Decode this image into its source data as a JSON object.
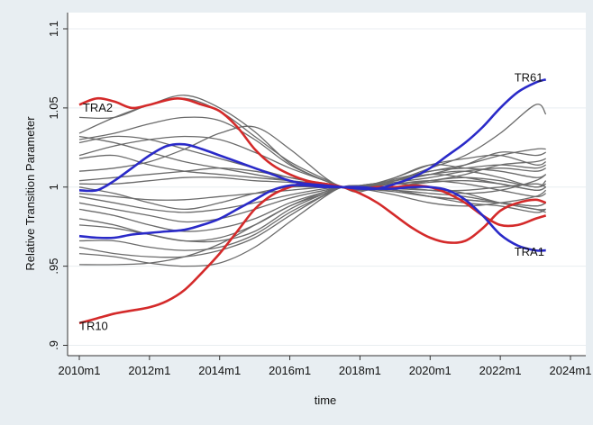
{
  "chart_data": {
    "type": "line",
    "title": "",
    "xlabel": "time",
    "ylabel": "Relative Transition Parameter",
    "xlim": [
      2010.0,
      2024.0
    ],
    "ylim": [
      0.89,
      1.1
    ],
    "x_ticks": [
      {
        "value": 2010,
        "label": "2010m1"
      },
      {
        "value": 2012,
        "label": "2012m1"
      },
      {
        "value": 2014,
        "label": "2014m1"
      },
      {
        "value": 2016,
        "label": "2016m1"
      },
      {
        "value": 2018,
        "label": "2018m1"
      },
      {
        "value": 2020,
        "label": "2020m1"
      },
      {
        "value": 2022,
        "label": "2022m1"
      },
      {
        "value": 2024,
        "label": "2024m1"
      }
    ],
    "y_ticks": [
      {
        "value": 0.9,
        "label": ".9"
      },
      {
        "value": 0.95,
        "label": ".95"
      },
      {
        "value": 1.0,
        "label": "1"
      },
      {
        "value": 1.05,
        "label": "1.05"
      },
      {
        "value": 1.1,
        "label": "1.1"
      }
    ],
    "grid": true,
    "legend": "none",
    "colors": {
      "background": "#e8eef2",
      "plot_bg": "#ffffff",
      "other": "#6b6b6b",
      "red": "#d42a2a",
      "blue": "#2a2ac8",
      "grid": "#e8edf0"
    },
    "gray_series": [
      {
        "x": [
          2010,
          2011,
          2012,
          2013,
          2014,
          2015,
          2016,
          2017,
          2017.5,
          2018,
          2019,
          2020,
          2021,
          2022,
          2023,
          2023.3
        ],
        "y": [
          1.02,
          1.026,
          1.03,
          1.032,
          1.03,
          1.022,
          1.012,
          1.004,
          1.0,
          0.998,
          1.004,
          1.012,
          1.02,
          1.034,
          1.052,
          1.046
        ]
      },
      {
        "x": [
          2010,
          2011,
          2012,
          2013,
          2014,
          2015,
          2016,
          2017,
          2017.5,
          2018,
          2019,
          2020,
          2021,
          2022,
          2023,
          2023.3
        ],
        "y": [
          1.034,
          1.044,
          1.052,
          1.058,
          1.05,
          1.035,
          1.015,
          1.004,
          1.0,
          0.998,
          1.005,
          1.01,
          1.014,
          1.02,
          1.024,
          1.024
        ]
      },
      {
        "x": [
          2010,
          2011,
          2012,
          2013,
          2014,
          2015,
          2016,
          2017,
          2017.5,
          2018,
          2019,
          2020,
          2021,
          2022,
          2023,
          2023.3
        ],
        "y": [
          1.044,
          1.044,
          1.052,
          1.056,
          1.048,
          1.032,
          1.016,
          1.005,
          1.0,
          0.997,
          1.004,
          1.01,
          1.012,
          1.014,
          1.012,
          1.014
        ]
      },
      {
        "x": [
          2010,
          2011,
          2012,
          2013,
          2014,
          2015,
          2016,
          2017,
          2017.5,
          2018,
          2019,
          2020,
          2021,
          2022,
          2023,
          2023.3
        ],
        "y": [
          1.03,
          1.034,
          1.04,
          1.044,
          1.042,
          1.03,
          1.014,
          1.004,
          1.0,
          0.999,
          1.006,
          1.014,
          1.012,
          1.01,
          1.006,
          1.008
        ]
      },
      {
        "x": [
          2010,
          2011,
          2012,
          2013,
          2014,
          2015,
          2016,
          2017,
          2017.5,
          2018,
          2019,
          2020,
          2021,
          2022,
          2023,
          2023.3
        ],
        "y": [
          1.028,
          1.032,
          1.03,
          1.024,
          1.018,
          1.012,
          1.006,
          1.002,
          1.0,
          0.998,
          1.0,
          1.004,
          1.006,
          1.004,
          1.0,
          1.002
        ]
      },
      {
        "x": [
          2010,
          2011,
          2012,
          2013,
          2014,
          2015,
          2016,
          2017,
          2017.5,
          2018,
          2019,
          2020,
          2021,
          2022,
          2023,
          2023.3
        ],
        "y": [
          1.032,
          1.028,
          1.022,
          1.016,
          1.012,
          1.008,
          1.004,
          1.001,
          1.0,
          1.0,
          1.002,
          1.004,
          1.002,
          0.998,
          0.994,
          0.996
        ]
      },
      {
        "x": [
          2010,
          2011,
          2012,
          2013,
          2014,
          2015,
          2016,
          2017,
          2017.5,
          2018,
          2019,
          2020,
          2021,
          2022,
          2023,
          2023.3
        ],
        "y": [
          1.018,
          1.02,
          1.014,
          1.01,
          1.008,
          1.006,
          1.004,
          1.002,
          1.0,
          0.999,
          0.998,
          0.996,
          0.994,
          0.99,
          0.986,
          0.986
        ]
      },
      {
        "x": [
          2010,
          2011,
          2012,
          2013,
          2014,
          2015,
          2016,
          2017,
          2017.5,
          2018,
          2019,
          2020,
          2021,
          2022,
          2023,
          2023.3
        ],
        "y": [
          1.004,
          1.006,
          1.008,
          1.01,
          1.012,
          1.01,
          1.006,
          1.002,
          1.0,
          0.999,
          0.997,
          0.994,
          0.992,
          0.99,
          0.988,
          0.99
        ]
      },
      {
        "x": [
          2010,
          2011,
          2012,
          2013,
          2014,
          2015,
          2016,
          2017,
          2017.5,
          2018,
          2019,
          2020,
          2021,
          2022,
          2023,
          2023.3
        ],
        "y": [
          1.002,
          1.002,
          1.004,
          1.006,
          1.006,
          1.004,
          1.003,
          1.001,
          1.0,
          1.0,
          1.003,
          1.006,
          1.01,
          1.012,
          1.01,
          1.012
        ]
      },
      {
        "x": [
          2010,
          2011,
          2012,
          2013,
          2014,
          2015,
          2016,
          2017,
          2017.5,
          2018,
          2019,
          2020,
          2021,
          2022,
          2023,
          2023.3
        ],
        "y": [
          0.996,
          0.994,
          0.992,
          0.992,
          0.994,
          0.996,
          0.998,
          1.0,
          1.0,
          1.0,
          1.006,
          1.014,
          1.018,
          1.02,
          1.014,
          1.016
        ]
      },
      {
        "x": [
          2010,
          2011,
          2012,
          2013,
          2014,
          2015,
          2016,
          2017,
          2017.5,
          2018,
          2019,
          2020,
          2021,
          2022,
          2023,
          2023.3
        ],
        "y": [
          0.994,
          0.99,
          0.986,
          0.984,
          0.986,
          0.99,
          0.995,
          0.999,
          1.0,
          1.0,
          1.004,
          1.008,
          1.01,
          1.006,
          1.0,
          1.004
        ]
      },
      {
        "x": [
          2010,
          2011,
          2012,
          2013,
          2014,
          2015,
          2016,
          2017,
          2017.5,
          2018,
          2019,
          2020,
          2021,
          2022,
          2023,
          2023.3
        ],
        "y": [
          0.99,
          0.986,
          0.982,
          0.978,
          0.98,
          0.986,
          0.993,
          0.998,
          1.0,
          0.999,
          0.995,
          0.99,
          0.988,
          0.99,
          0.994,
          0.998
        ]
      },
      {
        "x": [
          2010,
          2011,
          2012,
          2013,
          2014,
          2015,
          2016,
          2017,
          2017.5,
          2018,
          2019,
          2020,
          2021,
          2022,
          2023,
          2023.3
        ],
        "y": [
          0.986,
          0.982,
          0.976,
          0.972,
          0.974,
          0.98,
          0.99,
          0.997,
          1.0,
          1.0,
          0.998,
          0.994,
          0.99,
          0.988,
          0.984,
          0.986
        ]
      },
      {
        "x": [
          2010,
          2011,
          2012,
          2013,
          2014,
          2015,
          2016,
          2017,
          2017.5,
          2018,
          2019,
          2020,
          2021,
          2022,
          2023,
          2023.3
        ],
        "y": [
          0.98,
          0.976,
          0.97,
          0.966,
          0.968,
          0.976,
          0.988,
          0.997,
          1.0,
          1.001,
          1.004,
          1.008,
          1.014,
          1.022,
          1.02,
          1.022
        ]
      },
      {
        "x": [
          2010,
          2011,
          2012,
          2013,
          2014,
          2015,
          2016,
          2017,
          2017.5,
          2018,
          2019,
          2020,
          2021,
          2022,
          2023,
          2023.3
        ],
        "y": [
          0.976,
          0.974,
          0.97,
          0.966,
          0.966,
          0.972,
          0.986,
          0.996,
          1.0,
          1.0,
          1.002,
          1.0,
          0.996,
          0.99,
          0.986,
          0.984
        ]
      },
      {
        "x": [
          2010,
          2011,
          2012,
          2013,
          2014,
          2015,
          2016,
          2017,
          2017.5,
          2018,
          2019,
          2020,
          2021,
          2022,
          2023,
          2023.3
        ],
        "y": [
          0.966,
          0.966,
          0.962,
          0.96,
          0.962,
          0.97,
          0.984,
          0.995,
          1.0,
          1.001,
          1.004,
          1.008,
          1.006,
          1.002,
          0.998,
          1.0
        ]
      },
      {
        "x": [
          2010,
          2011,
          2012,
          2013,
          2014,
          2015,
          2016,
          2017,
          2017.5,
          2018,
          2019,
          2020,
          2021,
          2022,
          2023,
          2023.3
        ],
        "y": [
          0.962,
          0.958,
          0.956,
          0.956,
          0.96,
          0.968,
          0.982,
          0.995,
          1.0,
          1.0,
          0.998,
          0.994,
          0.992,
          0.99,
          0.988,
          0.99
        ]
      },
      {
        "x": [
          2010,
          2011,
          2012,
          2013,
          2014,
          2015,
          2016,
          2017,
          2017.5,
          2018,
          2019,
          2020,
          2021,
          2022,
          2023,
          2023.3
        ],
        "y": [
          0.958,
          0.956,
          0.952,
          0.95,
          0.952,
          0.962,
          0.978,
          0.994,
          1.0,
          1.001,
          1.0,
          0.998,
          0.996,
          0.998,
          1.004,
          1.008
        ]
      },
      {
        "x": [
          2010,
          2011,
          2012,
          2013,
          2014,
          2015,
          2016,
          2017,
          2017.5,
          2018,
          2019,
          2020,
          2021,
          2022,
          2023,
          2023.3
        ],
        "y": [
          0.951,
          0.951,
          0.952,
          0.956,
          0.964,
          0.976,
          0.988,
          0.996,
          1.0,
          1.0,
          1.002,
          1.004,
          1.008,
          1.014,
          1.016,
          1.018
        ]
      },
      {
        "x": [
          2010,
          2011,
          2012,
          2013,
          2014,
          2015,
          2016,
          2017,
          2017.5,
          2018,
          2019,
          2020,
          2021,
          2022,
          2023,
          2023.3
        ],
        "y": [
          1.01,
          1.012,
          1.016,
          1.024,
          1.034,
          1.038,
          1.024,
          1.006,
          1.0,
          0.998,
          1.0,
          1.003,
          1.004,
          1.002,
          0.998,
          1.0
        ]
      },
      {
        "x": [
          2010,
          2011,
          2012,
          2013,
          2014,
          2015,
          2016,
          2017,
          2017.5,
          2018,
          2019,
          2020,
          2021,
          2022,
          2023,
          2023.3
        ],
        "y": [
          1.0,
          0.996,
          0.99,
          0.986,
          0.99,
          0.996,
          1.0,
          1.0,
          1.0,
          1.0,
          0.999,
          0.998,
          0.998,
          1.0,
          1.002,
          1.0
        ]
      }
    ],
    "highlight_series": [
      {
        "name": "TRA2",
        "color": "#d42a2a",
        "x": [
          2010,
          2010.5,
          2011,
          2011.5,
          2012,
          2012.8,
          2013.5,
          2014,
          2014.5,
          2015,
          2015.5,
          2016,
          2016.5,
          2017,
          2017.5,
          2018,
          2018.5,
          2019,
          2019.5,
          2020,
          2020.5,
          2021,
          2021.5,
          2022,
          2022.5,
          2023,
          2023.3
        ],
        "y": [
          1.052,
          1.056,
          1.054,
          1.05,
          1.052,
          1.056,
          1.052,
          1.048,
          1.038,
          1.024,
          1.014,
          1.008,
          1.004,
          1.002,
          1.0,
          0.999,
          1.0,
          1.0,
          1.001,
          1.0,
          0.996,
          0.99,
          0.982,
          0.976,
          0.976,
          0.98,
          0.982
        ]
      },
      {
        "name": "TR10",
        "color": "#d42a2a",
        "x": [
          2010,
          2010.5,
          2011,
          2011.5,
          2012,
          2012.5,
          2013,
          2013.5,
          2014,
          2014.5,
          2015,
          2015.5,
          2016,
          2016.5,
          2017,
          2017.5,
          2018,
          2018.5,
          2019,
          2019.5,
          2020,
          2020.5,
          2021,
          2021.5,
          2022,
          2022.5,
          2023,
          2023.3
        ],
        "y": [
          0.914,
          0.917,
          0.92,
          0.922,
          0.924,
          0.928,
          0.935,
          0.946,
          0.958,
          0.972,
          0.986,
          0.995,
          1.0,
          1.003,
          1.002,
          1.0,
          0.996,
          0.99,
          0.982,
          0.974,
          0.968,
          0.965,
          0.966,
          0.974,
          0.985,
          0.99,
          0.992,
          0.99
        ]
      },
      {
        "name": "TR61",
        "color": "#2a2ac8",
        "x": [
          2010,
          2010.5,
          2011,
          2011.5,
          2012,
          2012.5,
          2013,
          2013.5,
          2014,
          2014.5,
          2015,
          2015.5,
          2016,
          2016.5,
          2017,
          2017.5,
          2018,
          2018.5,
          2019,
          2019.5,
          2020,
          2020.5,
          2021,
          2021.5,
          2022,
          2022.5,
          2023,
          2023.3
        ],
        "y": [
          0.998,
          0.998,
          1.004,
          1.012,
          1.02,
          1.026,
          1.027,
          1.024,
          1.02,
          1.016,
          1.012,
          1.008,
          1.004,
          1.002,
          1.001,
          1.0,
          0.999,
          0.999,
          1.002,
          1.006,
          1.012,
          1.02,
          1.028,
          1.038,
          1.05,
          1.06,
          1.066,
          1.068
        ]
      },
      {
        "name": "TRA1",
        "color": "#2a2ac8",
        "x": [
          2010,
          2010.5,
          2011,
          2011.5,
          2012,
          2012.5,
          2013,
          2013.5,
          2014,
          2014.5,
          2015,
          2015.5,
          2016,
          2016.5,
          2017,
          2017.5,
          2018,
          2018.5,
          2019,
          2019.5,
          2020,
          2020.5,
          2021,
          2021.5,
          2022,
          2022.5,
          2023,
          2023.3
        ],
        "y": [
          0.969,
          0.968,
          0.968,
          0.97,
          0.971,
          0.972,
          0.973,
          0.976,
          0.98,
          0.986,
          0.992,
          0.998,
          1.001,
          1.001,
          1.0,
          1.0,
          1.0,
          0.999,
          0.999,
          1.0,
          1.0,
          0.998,
          0.992,
          0.982,
          0.97,
          0.963,
          0.96,
          0.96
        ]
      }
    ],
    "annotations": [
      {
        "text": "TRA2",
        "x": 2010.1,
        "y": 1.05
      },
      {
        "text": "TR61",
        "x": 2022.4,
        "y": 1.069
      },
      {
        "text": "TRA1",
        "x": 2022.4,
        "y": 0.959
      },
      {
        "text": "TR10",
        "x": 2010.0,
        "y": 0.912
      }
    ]
  }
}
